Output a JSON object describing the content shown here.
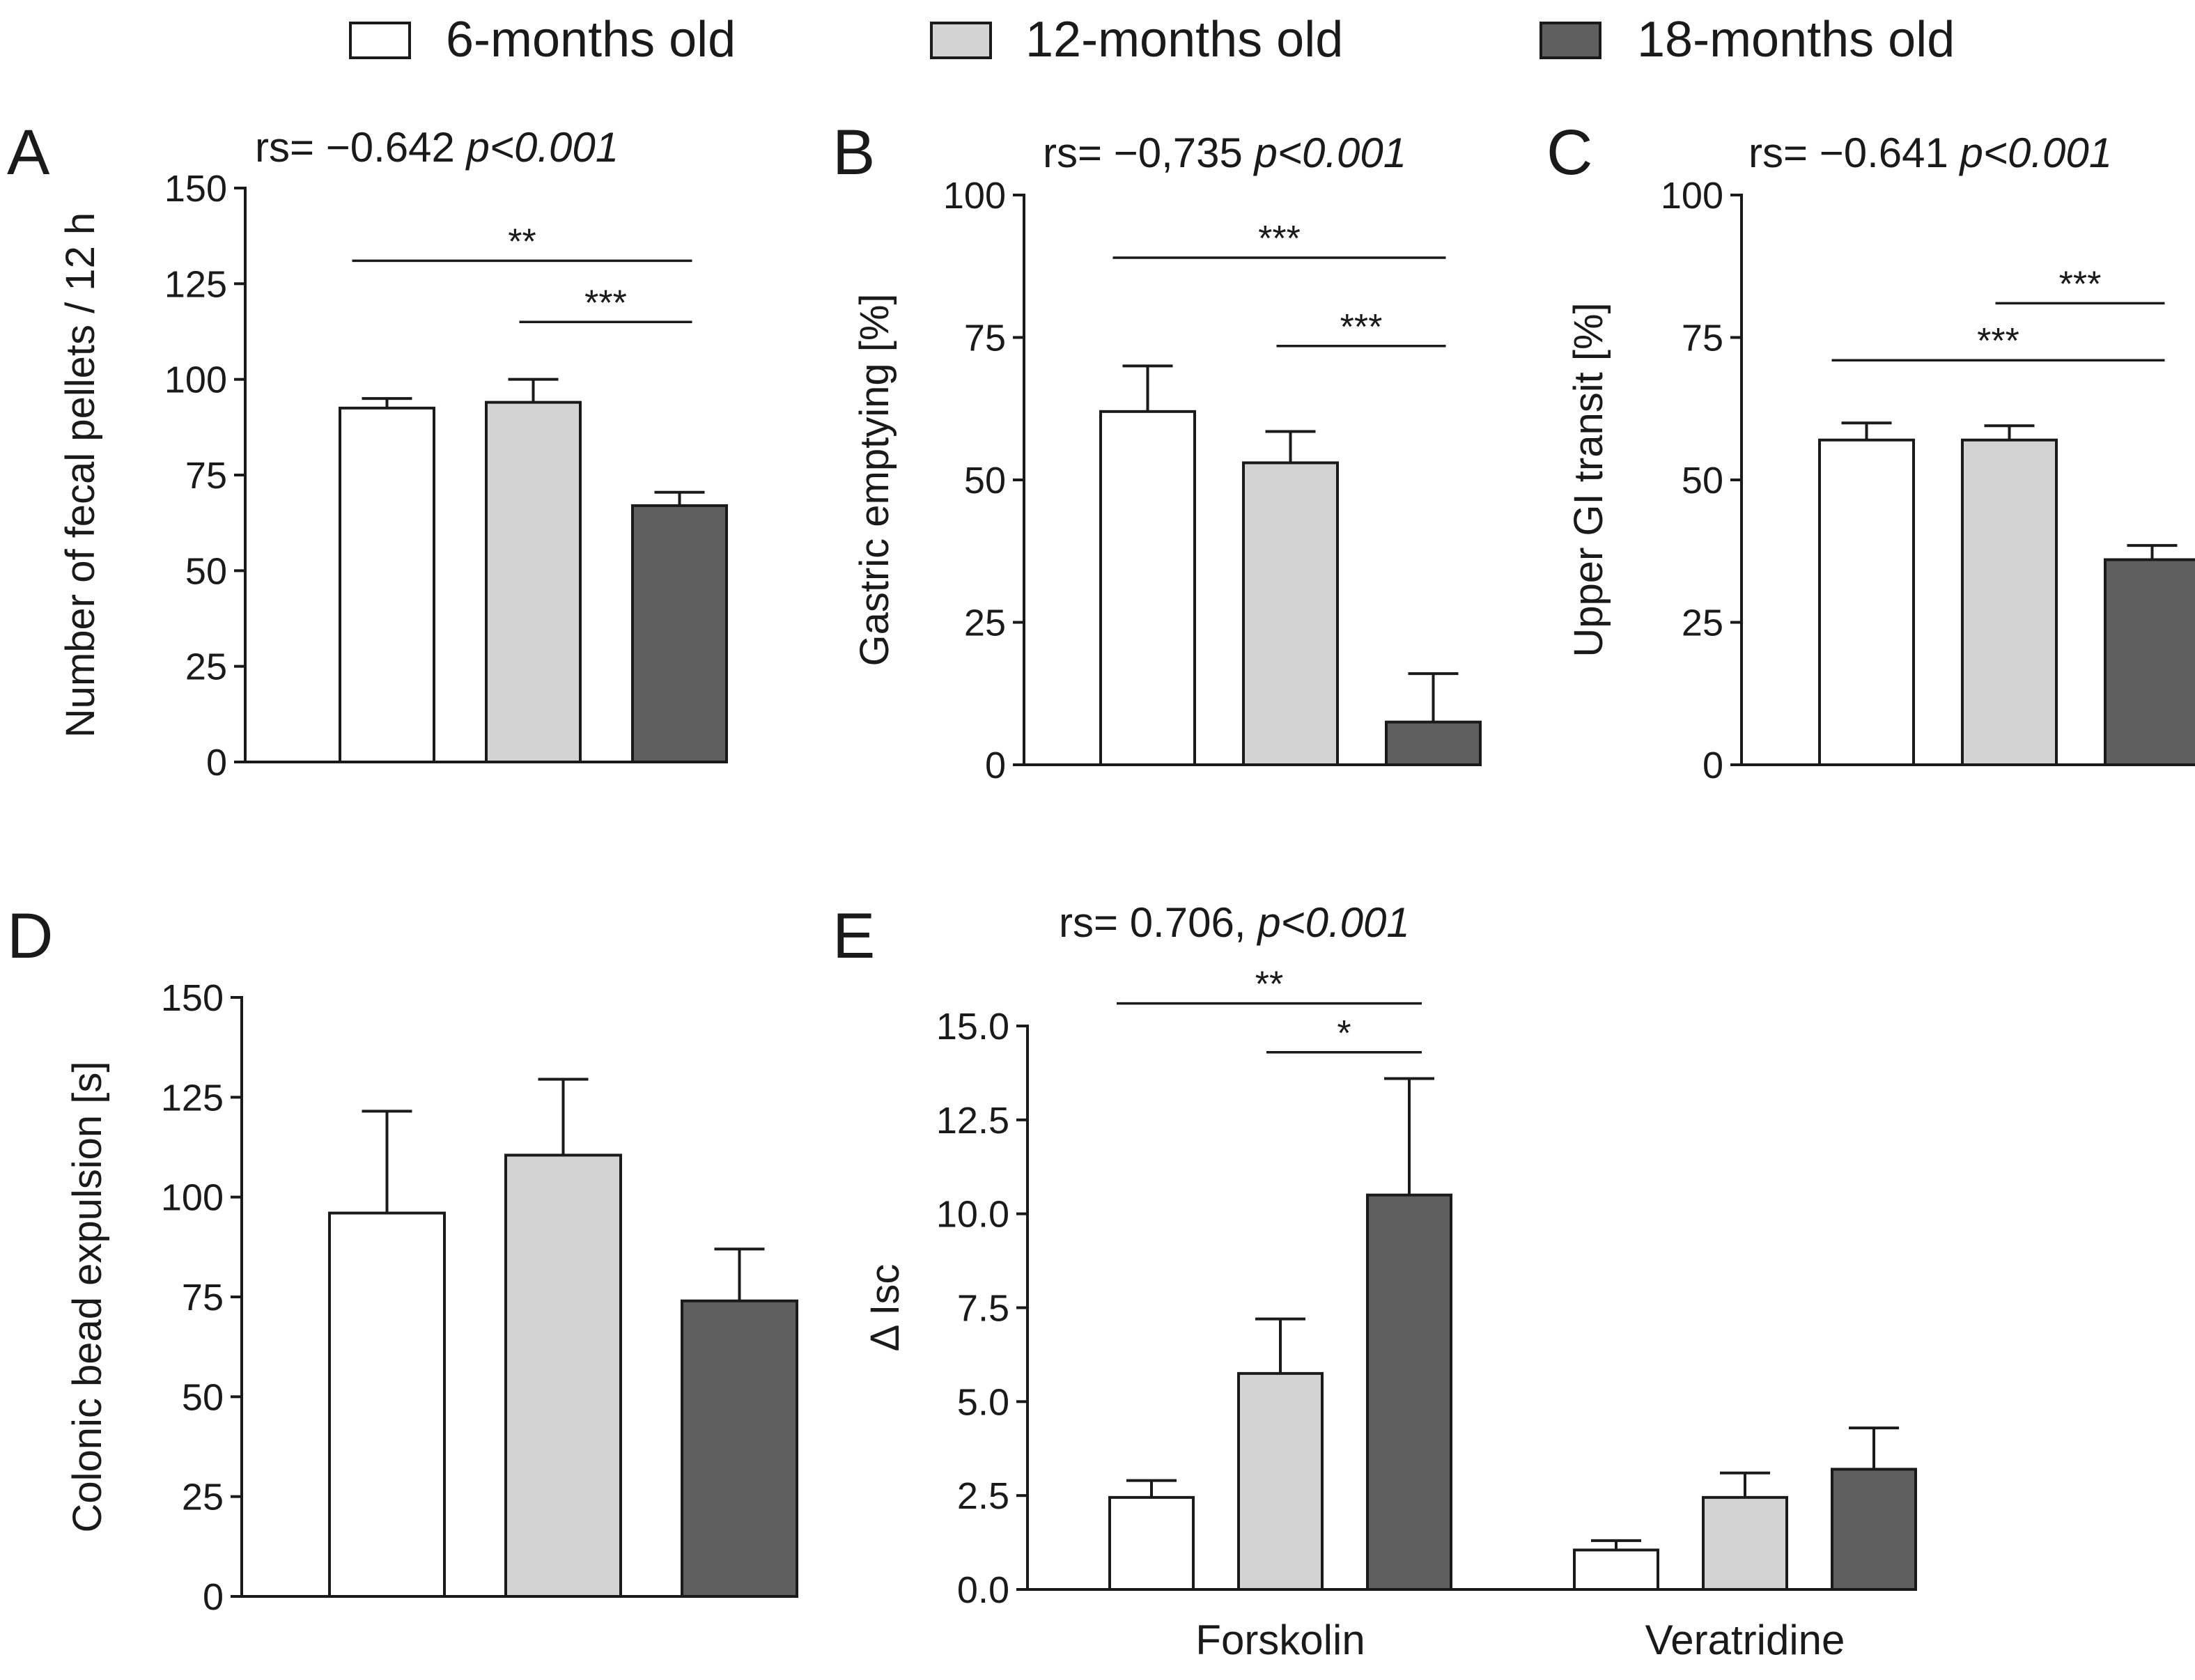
{
  "legend": {
    "items": [
      {
        "label": "6-months old",
        "color": "#ffffff"
      },
      {
        "label": "12-months old",
        "color": "#d3d3d3"
      },
      {
        "label": "18-months old",
        "color": "#5f5f5f"
      }
    ]
  },
  "chart_data": [
    {
      "panel": "A",
      "type": "bar",
      "stats_rs": "rs= −0.642 ",
      "stats_p": "p<0.001",
      "ylabel": "Number of fecal pellets / 12 h",
      "ylim": [
        0,
        150
      ],
      "yticks": [
        0,
        25,
        50,
        75,
        100,
        125,
        150
      ],
      "groups": [
        ""
      ],
      "series": [
        {
          "name": "6-months old",
          "values": [
            92.5
          ],
          "errors": [
            2.5
          ]
        },
        {
          "name": "12-months old",
          "values": [
            94
          ],
          "errors": [
            6
          ]
        },
        {
          "name": "18-months old",
          "values": [
            67
          ],
          "errors": [
            3.5
          ]
        }
      ],
      "significance": [
        {
          "from": 0,
          "to": 2,
          "label": "**",
          "y": 131
        },
        {
          "from": 1,
          "to": 2,
          "label": "***",
          "y": 115
        }
      ]
    },
    {
      "panel": "B",
      "type": "bar",
      "stats_rs": "rs= −0,735 ",
      "stats_p": "p<0.001",
      "ylabel": "Gastric emptying [%]",
      "ylim": [
        0,
        100
      ],
      "yticks": [
        0,
        25,
        50,
        75,
        100
      ],
      "groups": [
        ""
      ],
      "series": [
        {
          "name": "6-months old",
          "values": [
            62
          ],
          "errors": [
            8
          ]
        },
        {
          "name": "12-months old",
          "values": [
            53
          ],
          "errors": [
            5.5
          ]
        },
        {
          "name": "18-months old",
          "values": [
            7.5
          ],
          "errors": [
            8.5
          ]
        }
      ],
      "significance": [
        {
          "from": 0,
          "to": 2,
          "label": "***",
          "y": 89
        },
        {
          "from": 1,
          "to": 2,
          "label": "***",
          "y": 73.5
        }
      ]
    },
    {
      "panel": "C",
      "type": "bar",
      "stats_rs": "rs= −0.641 ",
      "stats_p": "p<0.001",
      "ylabel": "Upper GI transit [%]",
      "ylim": [
        0,
        100
      ],
      "yticks": [
        0,
        25,
        50,
        75,
        100
      ],
      "groups": [
        ""
      ],
      "series": [
        {
          "name": "6-months old",
          "values": [
            57
          ],
          "errors": [
            3
          ]
        },
        {
          "name": "12-months old",
          "values": [
            57
          ],
          "errors": [
            2.5
          ]
        },
        {
          "name": "18-months old",
          "values": [
            36
          ],
          "errors": [
            2.5
          ]
        }
      ],
      "significance": [
        {
          "from": 1,
          "to": 2,
          "label": "***",
          "y": 81
        },
        {
          "from": 0,
          "to": 2,
          "label": "***",
          "y": 71
        }
      ]
    },
    {
      "panel": "D",
      "type": "bar",
      "stats_rs": "",
      "stats_p": "",
      "ylabel": "Colonic bead expulsion [s]",
      "ylim": [
        0,
        150
      ],
      "yticks": [
        0,
        25,
        50,
        75,
        100,
        125,
        150
      ],
      "groups": [
        ""
      ],
      "series": [
        {
          "name": "6-months old",
          "values": [
            96
          ],
          "errors": [
            25.5
          ]
        },
        {
          "name": "12-months old",
          "values": [
            110.5
          ],
          "errors": [
            19
          ]
        },
        {
          "name": "18-months old",
          "values": [
            74
          ],
          "errors": [
            13
          ]
        }
      ],
      "significance": []
    },
    {
      "panel": "E",
      "type": "bar",
      "stats_rs": "rs= 0.706, ",
      "stats_p": "p<0.001",
      "ylabel": "Δ Isc",
      "ylim": [
        0,
        15
      ],
      "yticks": [
        0,
        2.5,
        5,
        7.5,
        10,
        12.5,
        15
      ],
      "ytick_labels": [
        "0.0",
        "2.5",
        "5.0",
        "7.5",
        "10.0",
        "12.5",
        "15.0"
      ],
      "groups": [
        "Forskolin",
        "Veratridine"
      ],
      "series": [
        {
          "name": "6-months old",
          "values": [
            2.45,
            1.05
          ],
          "errors": [
            0.45,
            0.25
          ]
        },
        {
          "name": "12-months old",
          "values": [
            5.75,
            2.45
          ],
          "errors": [
            1.45,
            0.65
          ]
        },
        {
          "name": "18-months old",
          "values": [
            10.5,
            3.2
          ],
          "errors": [
            3.1,
            1.1
          ]
        }
      ],
      "significance": [
        {
          "from": 0,
          "to": 2,
          "label": "**",
          "y": 15.6
        },
        {
          "from": 1,
          "to": 2,
          "label": "*",
          "y": 14.3
        }
      ]
    }
  ]
}
